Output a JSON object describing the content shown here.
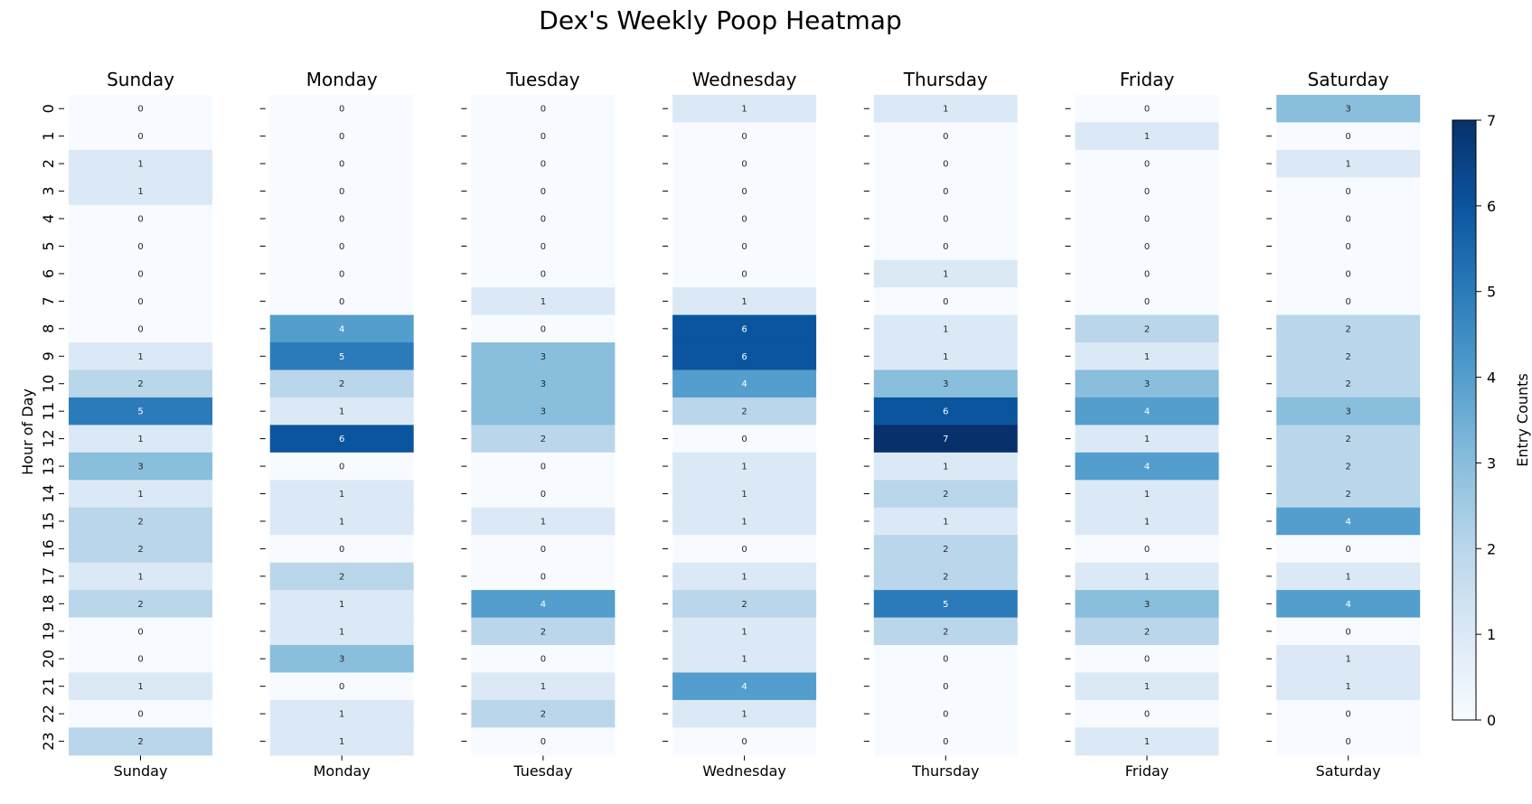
{
  "chart_data": {
    "type": "heatmap",
    "title": "Dex's Weekly Poop Heatmap",
    "ylabel": "Hour of Day",
    "hours": [
      "0",
      "1",
      "2",
      "3",
      "4",
      "5",
      "6",
      "7",
      "8",
      "9",
      "10",
      "11",
      "12",
      "13",
      "14",
      "15",
      "16",
      "17",
      "18",
      "19",
      "20",
      "21",
      "22",
      "23"
    ],
    "days": [
      {
        "name": "Sunday",
        "values": [
          0,
          0,
          1,
          1,
          0,
          0,
          0,
          0,
          0,
          1,
          2,
          5,
          1,
          3,
          1,
          2,
          2,
          1,
          2,
          0,
          0,
          1,
          0,
          2
        ]
      },
      {
        "name": "Monday",
        "values": [
          0,
          0,
          0,
          0,
          0,
          0,
          0,
          0,
          4,
          5,
          2,
          1,
          6,
          0,
          1,
          1,
          0,
          2,
          1,
          1,
          3,
          0,
          1,
          1
        ]
      },
      {
        "name": "Tuesday",
        "values": [
          0,
          0,
          0,
          0,
          0,
          0,
          0,
          1,
          0,
          3,
          3,
          3,
          2,
          0,
          0,
          1,
          0,
          0,
          4,
          2,
          0,
          1,
          2,
          0
        ]
      },
      {
        "name": "Wednesday",
        "values": [
          1,
          0,
          0,
          0,
          0,
          0,
          0,
          1,
          6,
          6,
          4,
          2,
          0,
          1,
          1,
          1,
          0,
          1,
          2,
          1,
          1,
          4,
          1,
          0
        ]
      },
      {
        "name": "Thursday",
        "values": [
          1,
          0,
          0,
          0,
          0,
          0,
          1,
          0,
          1,
          1,
          3,
          6,
          7,
          1,
          2,
          1,
          2,
          2,
          5,
          2,
          0,
          0,
          0,
          0
        ]
      },
      {
        "name": "Friday",
        "values": [
          0,
          1,
          0,
          0,
          0,
          0,
          0,
          0,
          2,
          1,
          3,
          4,
          1,
          4,
          1,
          1,
          0,
          1,
          3,
          2,
          0,
          1,
          0,
          1
        ]
      },
      {
        "name": "Saturday",
        "values": [
          3,
          0,
          1,
          0,
          0,
          0,
          0,
          0,
          2,
          2,
          2,
          3,
          2,
          2,
          2,
          4,
          0,
          1,
          4,
          0,
          1,
          1,
          0,
          0
        ]
      }
    ],
    "colorbar": {
      "label": "Entry Counts",
      "range": [
        0,
        7
      ],
      "ticks": [
        "0",
        "1",
        "2",
        "3",
        "4",
        "5",
        "6",
        "7"
      ],
      "colormap": [
        "#f7fbff",
        "#dbe9f6",
        "#bad6eb",
        "#89bedc",
        "#539ecd",
        "#2b7bba",
        "#0b559f",
        "#08306b"
      ]
    }
  }
}
